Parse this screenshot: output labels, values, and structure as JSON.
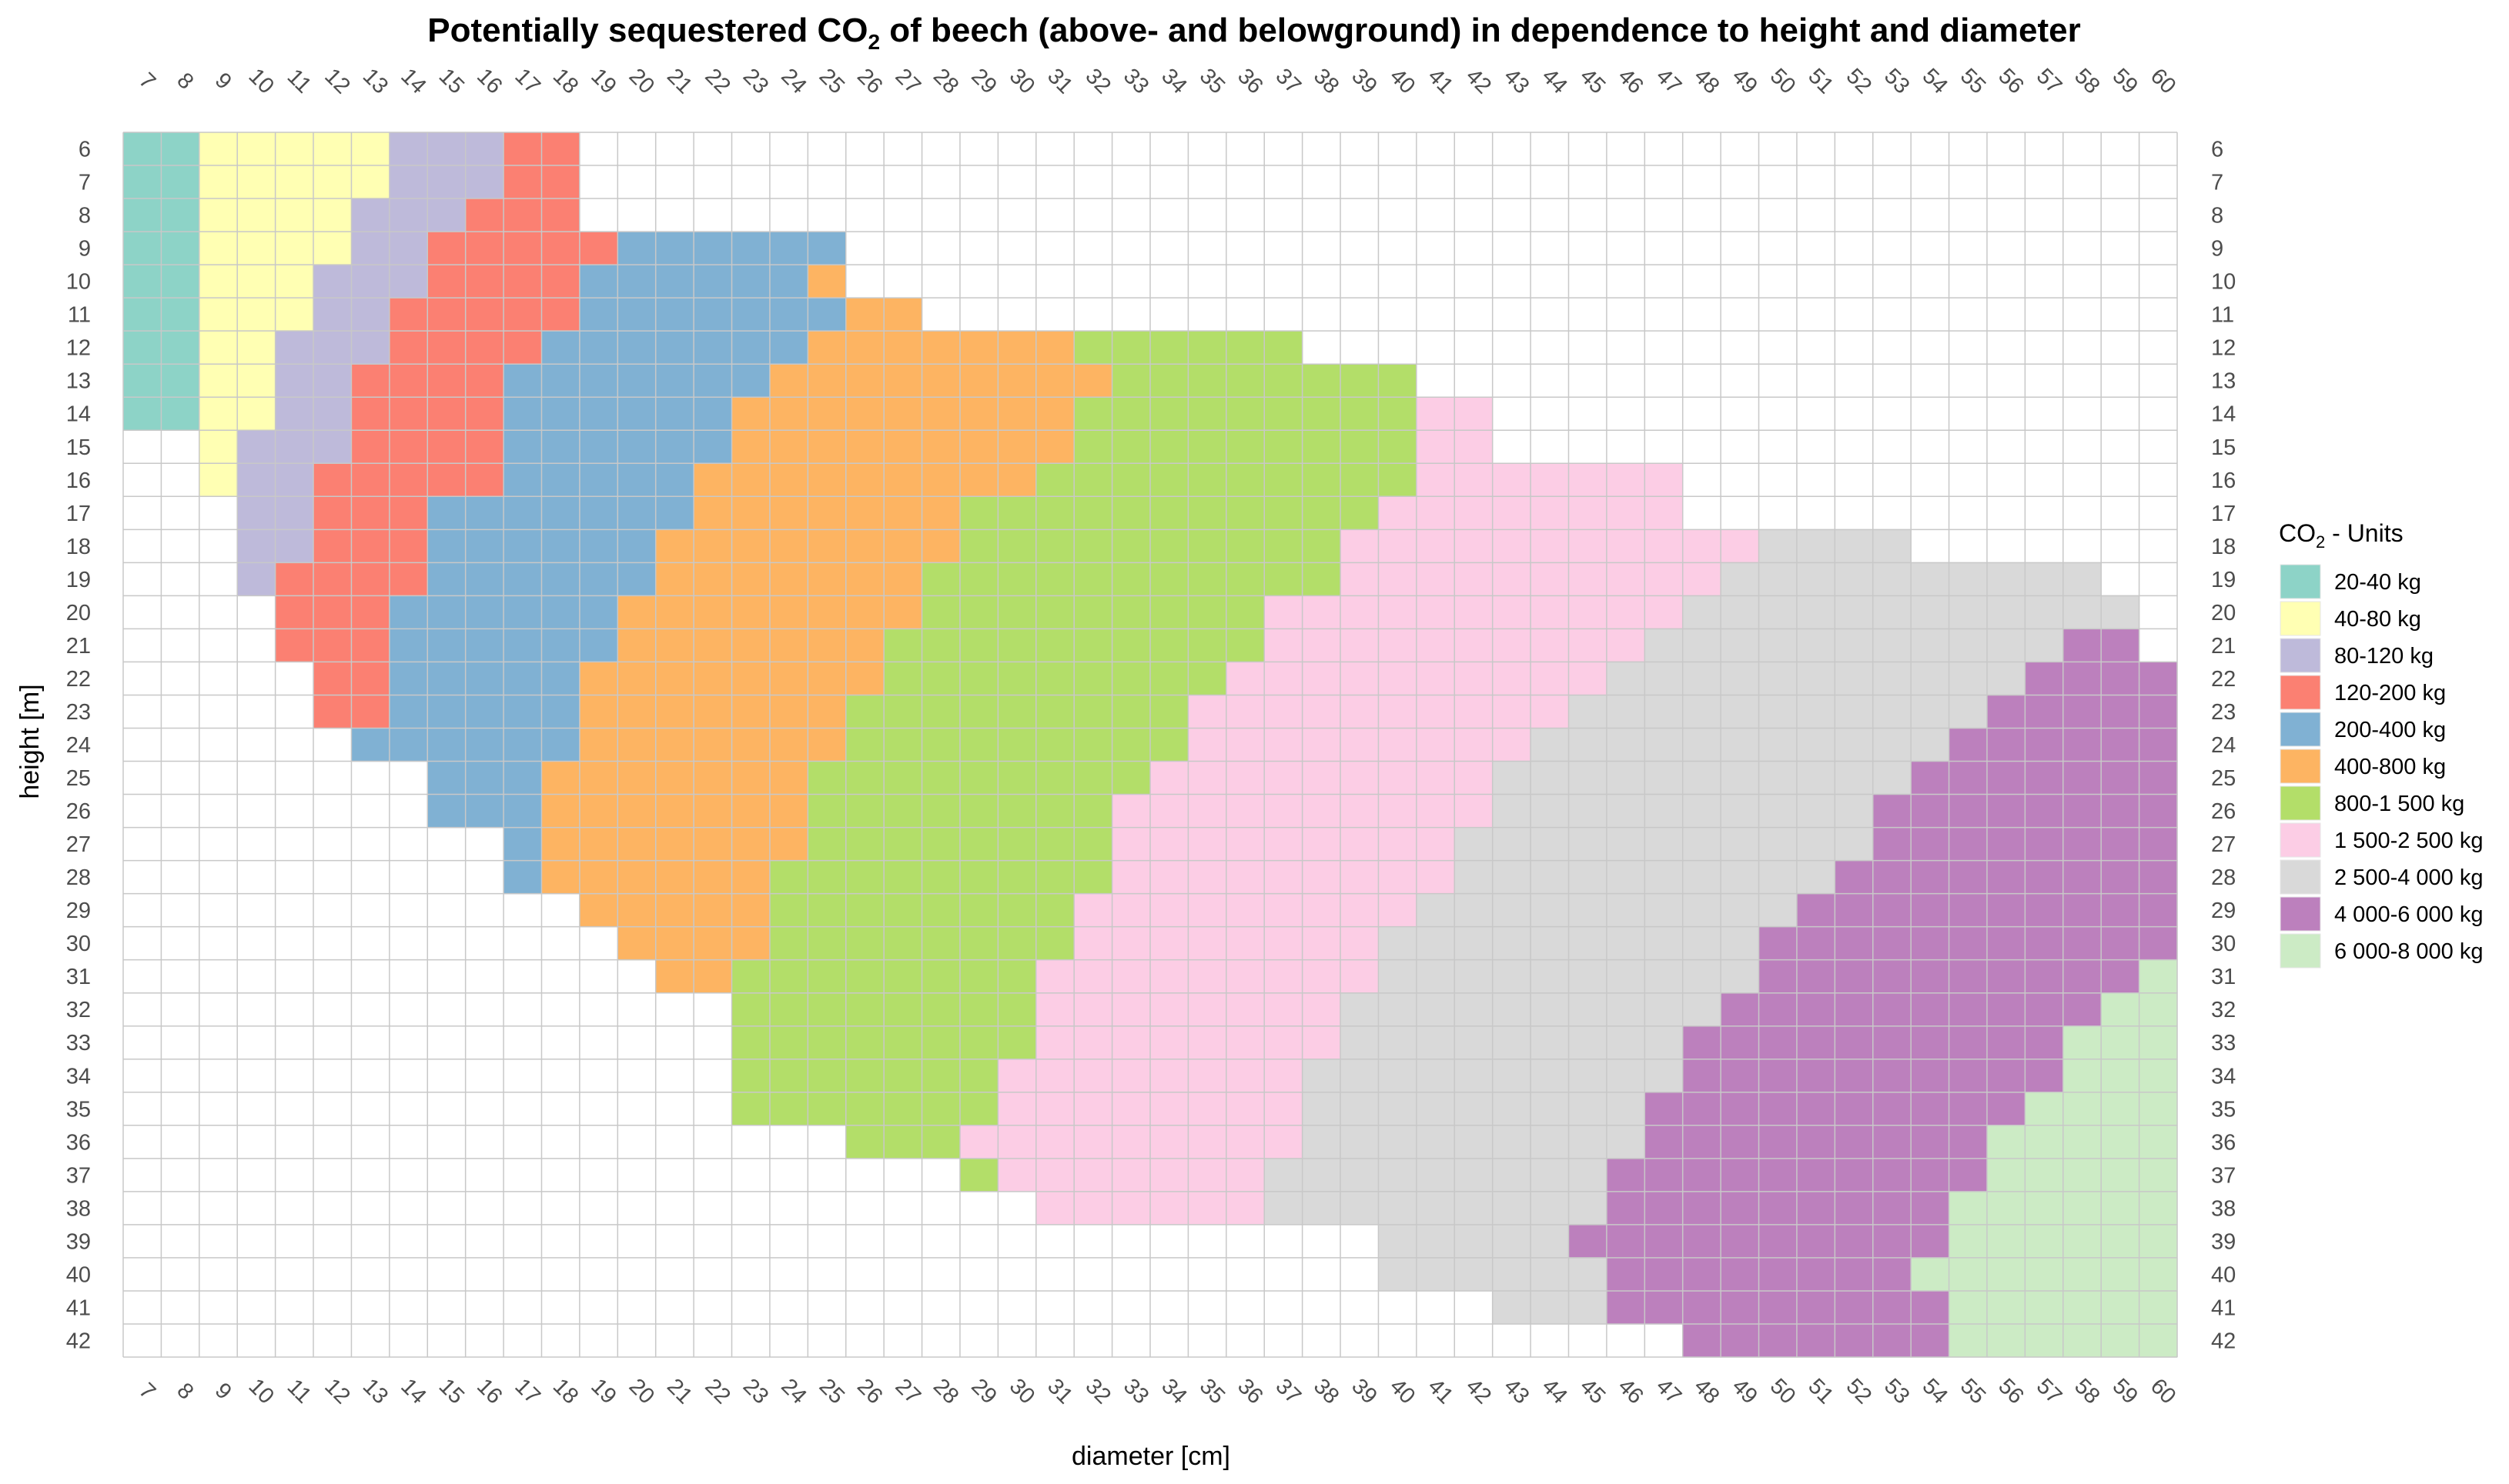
{
  "chart_data": {
    "type": "heatmap",
    "title": {
      "before": "Potentially sequestered CO",
      "subscript": "2",
      "after": " of beech (above- and belowground) in dependence to height and diameter"
    },
    "xlabel": "diameter [cm]",
    "ylabel": "height [m]",
    "x_range": [
      7,
      60
    ],
    "y_range": [
      6,
      42
    ],
    "grid": true,
    "legend_position": "right",
    "legend": {
      "title_before": "CO",
      "title_subscript": "2",
      "title_after": " - Units",
      "entries": [
        {
          "label": "20-40 kg",
          "color": "#8dd3c7"
        },
        {
          "label": "40-80 kg",
          "color": "#ffffb3"
        },
        {
          "label": "80-120 kg",
          "color": "#bebada"
        },
        {
          "label": "120-200 kg",
          "color": "#fb8072"
        },
        {
          "label": "200-400 kg",
          "color": "#80b1d3"
        },
        {
          "label": "400-800 kg",
          "color": "#fdb462"
        },
        {
          "label": "800-1 500 kg",
          "color": "#b3de69"
        },
        {
          "label": "1 500-2 500 kg",
          "color": "#fccde5"
        },
        {
          "label": "2 500-4 000 kg",
          "color": "#d9d9d9"
        },
        {
          "label": "4 000-6 000 kg",
          "color": "#bc80bd"
        },
        {
          "label": "6 000-8 000 kg",
          "color": "#ccebc5"
        }
      ]
    },
    "rows_note": "each row: height [m] -> list of [first diameter, last diameter, class index] runs",
    "rows": {
      "6": [
        [
          7,
          8,
          0
        ],
        [
          9,
          13,
          1
        ],
        [
          14,
          16,
          2
        ],
        [
          17,
          18,
          3
        ]
      ],
      "7": [
        [
          7,
          8,
          0
        ],
        [
          9,
          13,
          1
        ],
        [
          14,
          16,
          2
        ],
        [
          17,
          18,
          3
        ]
      ],
      "8": [
        [
          7,
          8,
          0
        ],
        [
          9,
          12,
          1
        ],
        [
          13,
          15,
          2
        ],
        [
          16,
          18,
          3
        ]
      ],
      "9": [
        [
          7,
          8,
          0
        ],
        [
          9,
          12,
          1
        ],
        [
          13,
          14,
          2
        ],
        [
          15,
          19,
          3
        ],
        [
          20,
          25,
          4
        ]
      ],
      "10": [
        [
          7,
          8,
          0
        ],
        [
          9,
          11,
          1
        ],
        [
          12,
          14,
          2
        ],
        [
          15,
          18,
          3
        ],
        [
          19,
          24,
          4
        ],
        [
          25,
          25,
          5
        ]
      ],
      "11": [
        [
          7,
          8,
          0
        ],
        [
          9,
          11,
          1
        ],
        [
          12,
          13,
          2
        ],
        [
          14,
          18,
          3
        ],
        [
          19,
          25,
          4
        ],
        [
          26,
          27,
          5
        ]
      ],
      "12": [
        [
          7,
          8,
          0
        ],
        [
          9,
          10,
          1
        ],
        [
          11,
          13,
          2
        ],
        [
          14,
          17,
          3
        ],
        [
          18,
          24,
          4
        ],
        [
          25,
          31,
          5
        ],
        [
          32,
          37,
          6
        ]
      ],
      "13": [
        [
          7,
          8,
          0
        ],
        [
          9,
          10,
          1
        ],
        [
          11,
          12,
          2
        ],
        [
          13,
          16,
          3
        ],
        [
          17,
          23,
          4
        ],
        [
          24,
          32,
          5
        ],
        [
          33,
          40,
          6
        ]
      ],
      "14": [
        [
          7,
          8,
          0
        ],
        [
          9,
          10,
          1
        ],
        [
          11,
          12,
          2
        ],
        [
          13,
          16,
          3
        ],
        [
          17,
          22,
          4
        ],
        [
          23,
          31,
          5
        ],
        [
          32,
          40,
          6
        ],
        [
          41,
          42,
          7
        ]
      ],
      "15": [
        [
          9,
          9,
          1
        ],
        [
          10,
          12,
          2
        ],
        [
          13,
          16,
          3
        ],
        [
          17,
          22,
          4
        ],
        [
          23,
          31,
          5
        ],
        [
          32,
          40,
          6
        ],
        [
          41,
          42,
          7
        ]
      ],
      "16": [
        [
          9,
          9,
          1
        ],
        [
          10,
          11,
          2
        ],
        [
          12,
          16,
          3
        ],
        [
          17,
          21,
          4
        ],
        [
          22,
          30,
          5
        ],
        [
          31,
          40,
          6
        ],
        [
          41,
          47,
          7
        ]
      ],
      "17": [
        [
          10,
          11,
          2
        ],
        [
          12,
          14,
          3
        ],
        [
          15,
          21,
          4
        ],
        [
          22,
          28,
          5
        ],
        [
          29,
          39,
          6
        ],
        [
          40,
          47,
          7
        ]
      ],
      "18": [
        [
          10,
          11,
          2
        ],
        [
          12,
          14,
          3
        ],
        [
          15,
          20,
          4
        ],
        [
          21,
          28,
          5
        ],
        [
          29,
          38,
          6
        ],
        [
          39,
          49,
          7
        ],
        [
          50,
          53,
          8
        ]
      ],
      "19": [
        [
          10,
          10,
          2
        ],
        [
          11,
          14,
          3
        ],
        [
          15,
          20,
          4
        ],
        [
          21,
          27,
          5
        ],
        [
          28,
          38,
          6
        ],
        [
          39,
          48,
          7
        ],
        [
          49,
          58,
          8
        ]
      ],
      "20": [
        [
          11,
          13,
          3
        ],
        [
          14,
          19,
          4
        ],
        [
          20,
          27,
          5
        ],
        [
          28,
          36,
          6
        ],
        [
          37,
          47,
          7
        ],
        [
          48,
          59,
          8
        ]
      ],
      "21": [
        [
          11,
          13,
          3
        ],
        [
          14,
          19,
          4
        ],
        [
          20,
          26,
          5
        ],
        [
          27,
          36,
          6
        ],
        [
          37,
          46,
          7
        ],
        [
          47,
          57,
          8
        ],
        [
          58,
          59,
          9
        ]
      ],
      "22": [
        [
          12,
          13,
          3
        ],
        [
          14,
          18,
          4
        ],
        [
          19,
          26,
          5
        ],
        [
          27,
          35,
          6
        ],
        [
          36,
          45,
          7
        ],
        [
          46,
          56,
          8
        ],
        [
          57,
          60,
          9
        ]
      ],
      "23": [
        [
          12,
          13,
          3
        ],
        [
          14,
          18,
          4
        ],
        [
          19,
          25,
          5
        ],
        [
          26,
          34,
          6
        ],
        [
          35,
          44,
          7
        ],
        [
          45,
          55,
          8
        ],
        [
          56,
          60,
          9
        ]
      ],
      "24": [
        [
          13,
          18,
          4
        ],
        [
          19,
          25,
          5
        ],
        [
          26,
          34,
          6
        ],
        [
          35,
          43,
          7
        ],
        [
          44,
          54,
          8
        ],
        [
          55,
          60,
          9
        ]
      ],
      "25": [
        [
          15,
          17,
          4
        ],
        [
          18,
          24,
          5
        ],
        [
          25,
          33,
          6
        ],
        [
          34,
          42,
          7
        ],
        [
          43,
          53,
          8
        ],
        [
          54,
          60,
          9
        ]
      ],
      "26": [
        [
          15,
          17,
          4
        ],
        [
          18,
          24,
          5
        ],
        [
          25,
          32,
          6
        ],
        [
          33,
          42,
          7
        ],
        [
          43,
          52,
          8
        ],
        [
          53,
          60,
          9
        ]
      ],
      "27": [
        [
          17,
          17,
          4
        ],
        [
          18,
          24,
          5
        ],
        [
          25,
          32,
          6
        ],
        [
          33,
          41,
          7
        ],
        [
          42,
          52,
          8
        ],
        [
          53,
          60,
          9
        ]
      ],
      "28": [
        [
          17,
          17,
          4
        ],
        [
          18,
          23,
          5
        ],
        [
          24,
          32,
          6
        ],
        [
          33,
          41,
          7
        ],
        [
          42,
          51,
          8
        ],
        [
          52,
          60,
          9
        ]
      ],
      "29": [
        [
          19,
          23,
          5
        ],
        [
          24,
          31,
          6
        ],
        [
          32,
          40,
          7
        ],
        [
          41,
          50,
          8
        ],
        [
          51,
          60,
          9
        ]
      ],
      "30": [
        [
          20,
          23,
          5
        ],
        [
          24,
          31,
          6
        ],
        [
          32,
          39,
          7
        ],
        [
          40,
          49,
          8
        ],
        [
          50,
          60,
          9
        ]
      ],
      "31": [
        [
          21,
          22,
          5
        ],
        [
          23,
          30,
          6
        ],
        [
          31,
          39,
          7
        ],
        [
          40,
          49,
          8
        ],
        [
          50,
          59,
          9
        ],
        [
          60,
          60,
          10
        ]
      ],
      "32": [
        [
          23,
          30,
          6
        ],
        [
          31,
          38,
          7
        ],
        [
          39,
          48,
          8
        ],
        [
          49,
          58,
          9
        ],
        [
          59,
          60,
          10
        ]
      ],
      "33": [
        [
          23,
          30,
          6
        ],
        [
          31,
          38,
          7
        ],
        [
          39,
          47,
          8
        ],
        [
          48,
          57,
          9
        ],
        [
          58,
          60,
          10
        ]
      ],
      "34": [
        [
          23,
          29,
          6
        ],
        [
          30,
          37,
          7
        ],
        [
          38,
          47,
          8
        ],
        [
          48,
          57,
          9
        ],
        [
          58,
          60,
          10
        ]
      ],
      "35": [
        [
          23,
          29,
          6
        ],
        [
          30,
          37,
          7
        ],
        [
          38,
          46,
          8
        ],
        [
          47,
          56,
          9
        ],
        [
          57,
          60,
          10
        ]
      ],
      "36": [
        [
          26,
          28,
          6
        ],
        [
          29,
          37,
          7
        ],
        [
          38,
          46,
          8
        ],
        [
          47,
          55,
          9
        ],
        [
          56,
          60,
          10
        ]
      ],
      "37": [
        [
          29,
          29,
          6
        ],
        [
          30,
          36,
          7
        ],
        [
          37,
          45,
          8
        ],
        [
          46,
          55,
          9
        ],
        [
          56,
          60,
          10
        ]
      ],
      "38": [
        [
          31,
          36,
          7
        ],
        [
          37,
          45,
          8
        ],
        [
          46,
          54,
          9
        ],
        [
          55,
          60,
          10
        ]
      ],
      "39": [
        [
          40,
          44,
          8
        ],
        [
          45,
          45,
          9
        ],
        [
          46,
          54,
          9
        ],
        [
          55,
          60,
          10
        ]
      ],
      "40": [
        [
          40,
          45,
          8
        ],
        [
          46,
          53,
          9
        ],
        [
          54,
          54,
          10
        ],
        [
          55,
          60,
          10
        ]
      ],
      "41": [
        [
          43,
          45,
          8
        ],
        [
          46,
          54,
          9
        ],
        [
          55,
          60,
          10
        ]
      ],
      "42": [
        [
          48,
          54,
          9
        ],
        [
          55,
          60,
          10
        ]
      ]
    }
  }
}
